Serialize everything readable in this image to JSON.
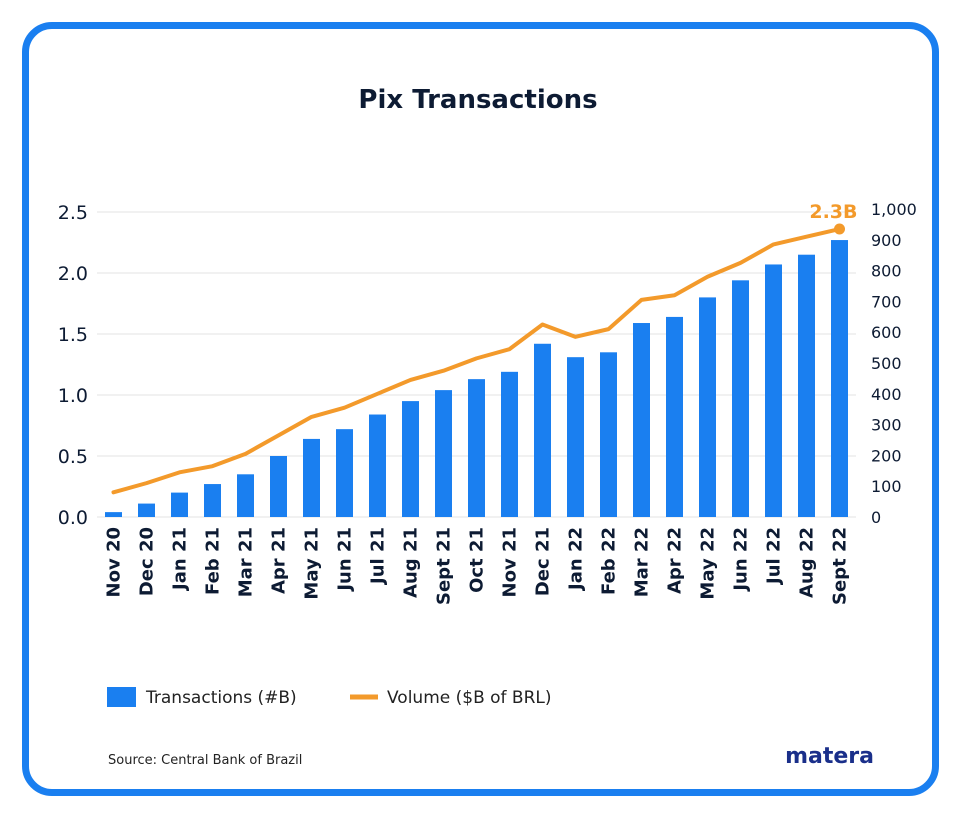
{
  "colors": {
    "border": "#1a7ff0",
    "bar": "#1a7ff0",
    "line": "#f39a2b",
    "text": "#0d1b33",
    "logo": "#1a2f8a",
    "grid": "#e3e3e3"
  },
  "chart_data": {
    "type": "bar",
    "title": "Pix Transactions",
    "categories": [
      "Nov 20",
      "Dec 20",
      "Jan 21",
      "Feb 21",
      "Mar 21",
      "Apr 21",
      "May 21",
      "Jun 21",
      "Jul 21",
      "Aug 21",
      "Sept 21",
      "Oct 21",
      "Nov 21",
      "Dec 21",
      "Jan 22",
      "Feb 22",
      "Mar 22",
      "Apr 22",
      "May 22",
      "Jun 22",
      "Jul 22",
      "Aug 22",
      "Sept 22"
    ],
    "series": [
      {
        "name": "Transactions (#B)",
        "type": "bar",
        "axis": "left",
        "values": [
          0.04,
          0.11,
          0.2,
          0.27,
          0.35,
          0.5,
          0.64,
          0.72,
          0.84,
          0.95,
          1.04,
          1.13,
          1.19,
          1.42,
          1.31,
          1.35,
          1.59,
          1.64,
          1.8,
          1.94,
          2.07,
          2.15,
          2.27
        ]
      },
      {
        "name": "Volume ($B of BRL)",
        "type": "line",
        "axis": "right",
        "values": [
          80,
          110,
          145,
          165,
          205,
          265,
          325,
          355,
          400,
          445,
          475,
          515,
          545,
          625,
          585,
          610,
          705,
          720,
          780,
          825,
          885,
          910,
          935
        ]
      }
    ],
    "y_left": {
      "min": 0,
      "max": 2.5,
      "ticks": [
        "0.0",
        "0.5",
        "1.0",
        "1.5",
        "2.0",
        "2.5"
      ]
    },
    "y_right": {
      "min": 0,
      "max": 1000,
      "ticks": [
        "0",
        "100",
        "200",
        "300",
        "400",
        "500",
        "600",
        "700",
        "800",
        "900",
        "1,000"
      ]
    },
    "annotation": "2.3B",
    "grid": true,
    "legend_position": "bottom-left"
  },
  "source": "Source: Central Bank of Brazil",
  "logo": "matera"
}
